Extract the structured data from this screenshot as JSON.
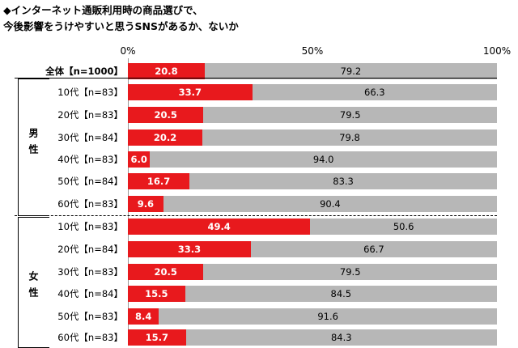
{
  "title": {
    "line1": "◆インターネット通販利用時の商品選びで、",
    "line2": "今後影響をうけやすいと思うSNSがあるか、ないか"
  },
  "groups": {
    "male": "男性",
    "female": "女性"
  },
  "colors": {
    "yes": "#e8191d",
    "no": "#b7b7b7"
  },
  "chart_data": {
    "type": "bar",
    "orientation": "horizontal",
    "stacked": true,
    "x_ticks": [
      "0%",
      "50%",
      "100%"
    ],
    "xlim": [
      0,
      100
    ],
    "categories": [
      "全体【n=1000】",
      "10代【n=83】",
      "20代【n=83】",
      "30代【n=84】",
      "40代【n=83】",
      "50代【n=84】",
      "60代【n=83】",
      "10代【n=83】",
      "20代【n=84】",
      "30代【n=83】",
      "40代【n=84】",
      "50代【n=83】",
      "60代【n=83】"
    ],
    "series": [
      {
        "values": [
          20.8,
          33.7,
          20.5,
          20.2,
          6.0,
          16.7,
          9.6,
          49.4,
          33.3,
          20.5,
          15.5,
          8.4,
          15.7
        ]
      },
      {
        "values": [
          79.2,
          66.3,
          79.5,
          79.8,
          94.0,
          83.3,
          90.4,
          50.6,
          66.7,
          79.5,
          84.5,
          91.6,
          84.3
        ]
      }
    ]
  }
}
